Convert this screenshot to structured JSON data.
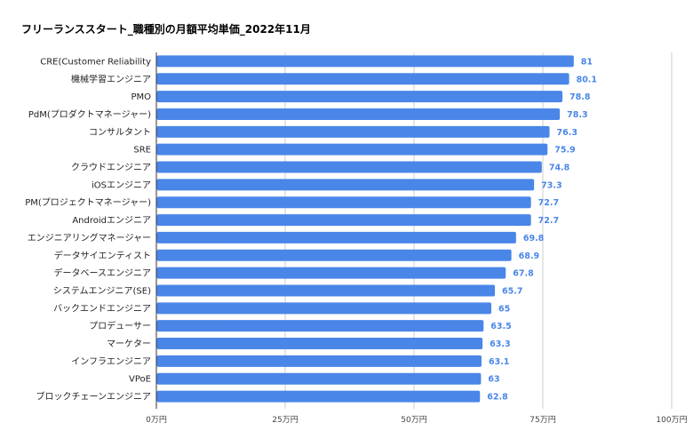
{
  "chart_data": {
    "type": "bar",
    "orientation": "horizontal",
    "title": "フリーランススタート_職種別の月額平均単価_2022年11月",
    "xlabel": "",
    "ylabel": "",
    "xlim": [
      0,
      100
    ],
    "x_ticks": [
      "0万円",
      "25万円",
      "50万円",
      "75万円",
      "100万円"
    ],
    "grid": true,
    "bar_color": "#4a86e8",
    "label_color": "#4a86e8",
    "categories": [
      "CRE(Customer Reliability",
      "機械学習エンジニア",
      "PMO",
      "PdM(プロダクトマネージャー)",
      "コンサルタント",
      "SRE",
      "クラウドエンジニア",
      "iOSエンジニア",
      "PM(プロジェクトマネージャー)",
      "Androidエンジニア",
      "エンジニアリングマネージャー",
      "データサイエンティスト",
      "データベースエンジニア",
      "システムエンジニア(SE)",
      "バックエンドエンジニア",
      "プロデューサー",
      "マーケター",
      "インフラエンジニア",
      "VPoE",
      "ブロックチェーンエンジニア"
    ],
    "values": [
      81,
      80.1,
      78.8,
      78.3,
      76.3,
      75.9,
      74.8,
      73.3,
      72.7,
      72.7,
      69.8,
      68.9,
      67.8,
      65.7,
      65,
      63.5,
      63.3,
      63.1,
      63,
      62.8
    ],
    "value_labels": [
      "81",
      "80.1",
      "78.8",
      "78.3",
      "76.3",
      "75.9",
      "74.8",
      "73.3",
      "72.7",
      "72.7",
      "69.8",
      "68.9",
      "67.8",
      "65.7",
      "65",
      "63.5",
      "63.3",
      "63.1",
      "63",
      "62.8"
    ]
  }
}
